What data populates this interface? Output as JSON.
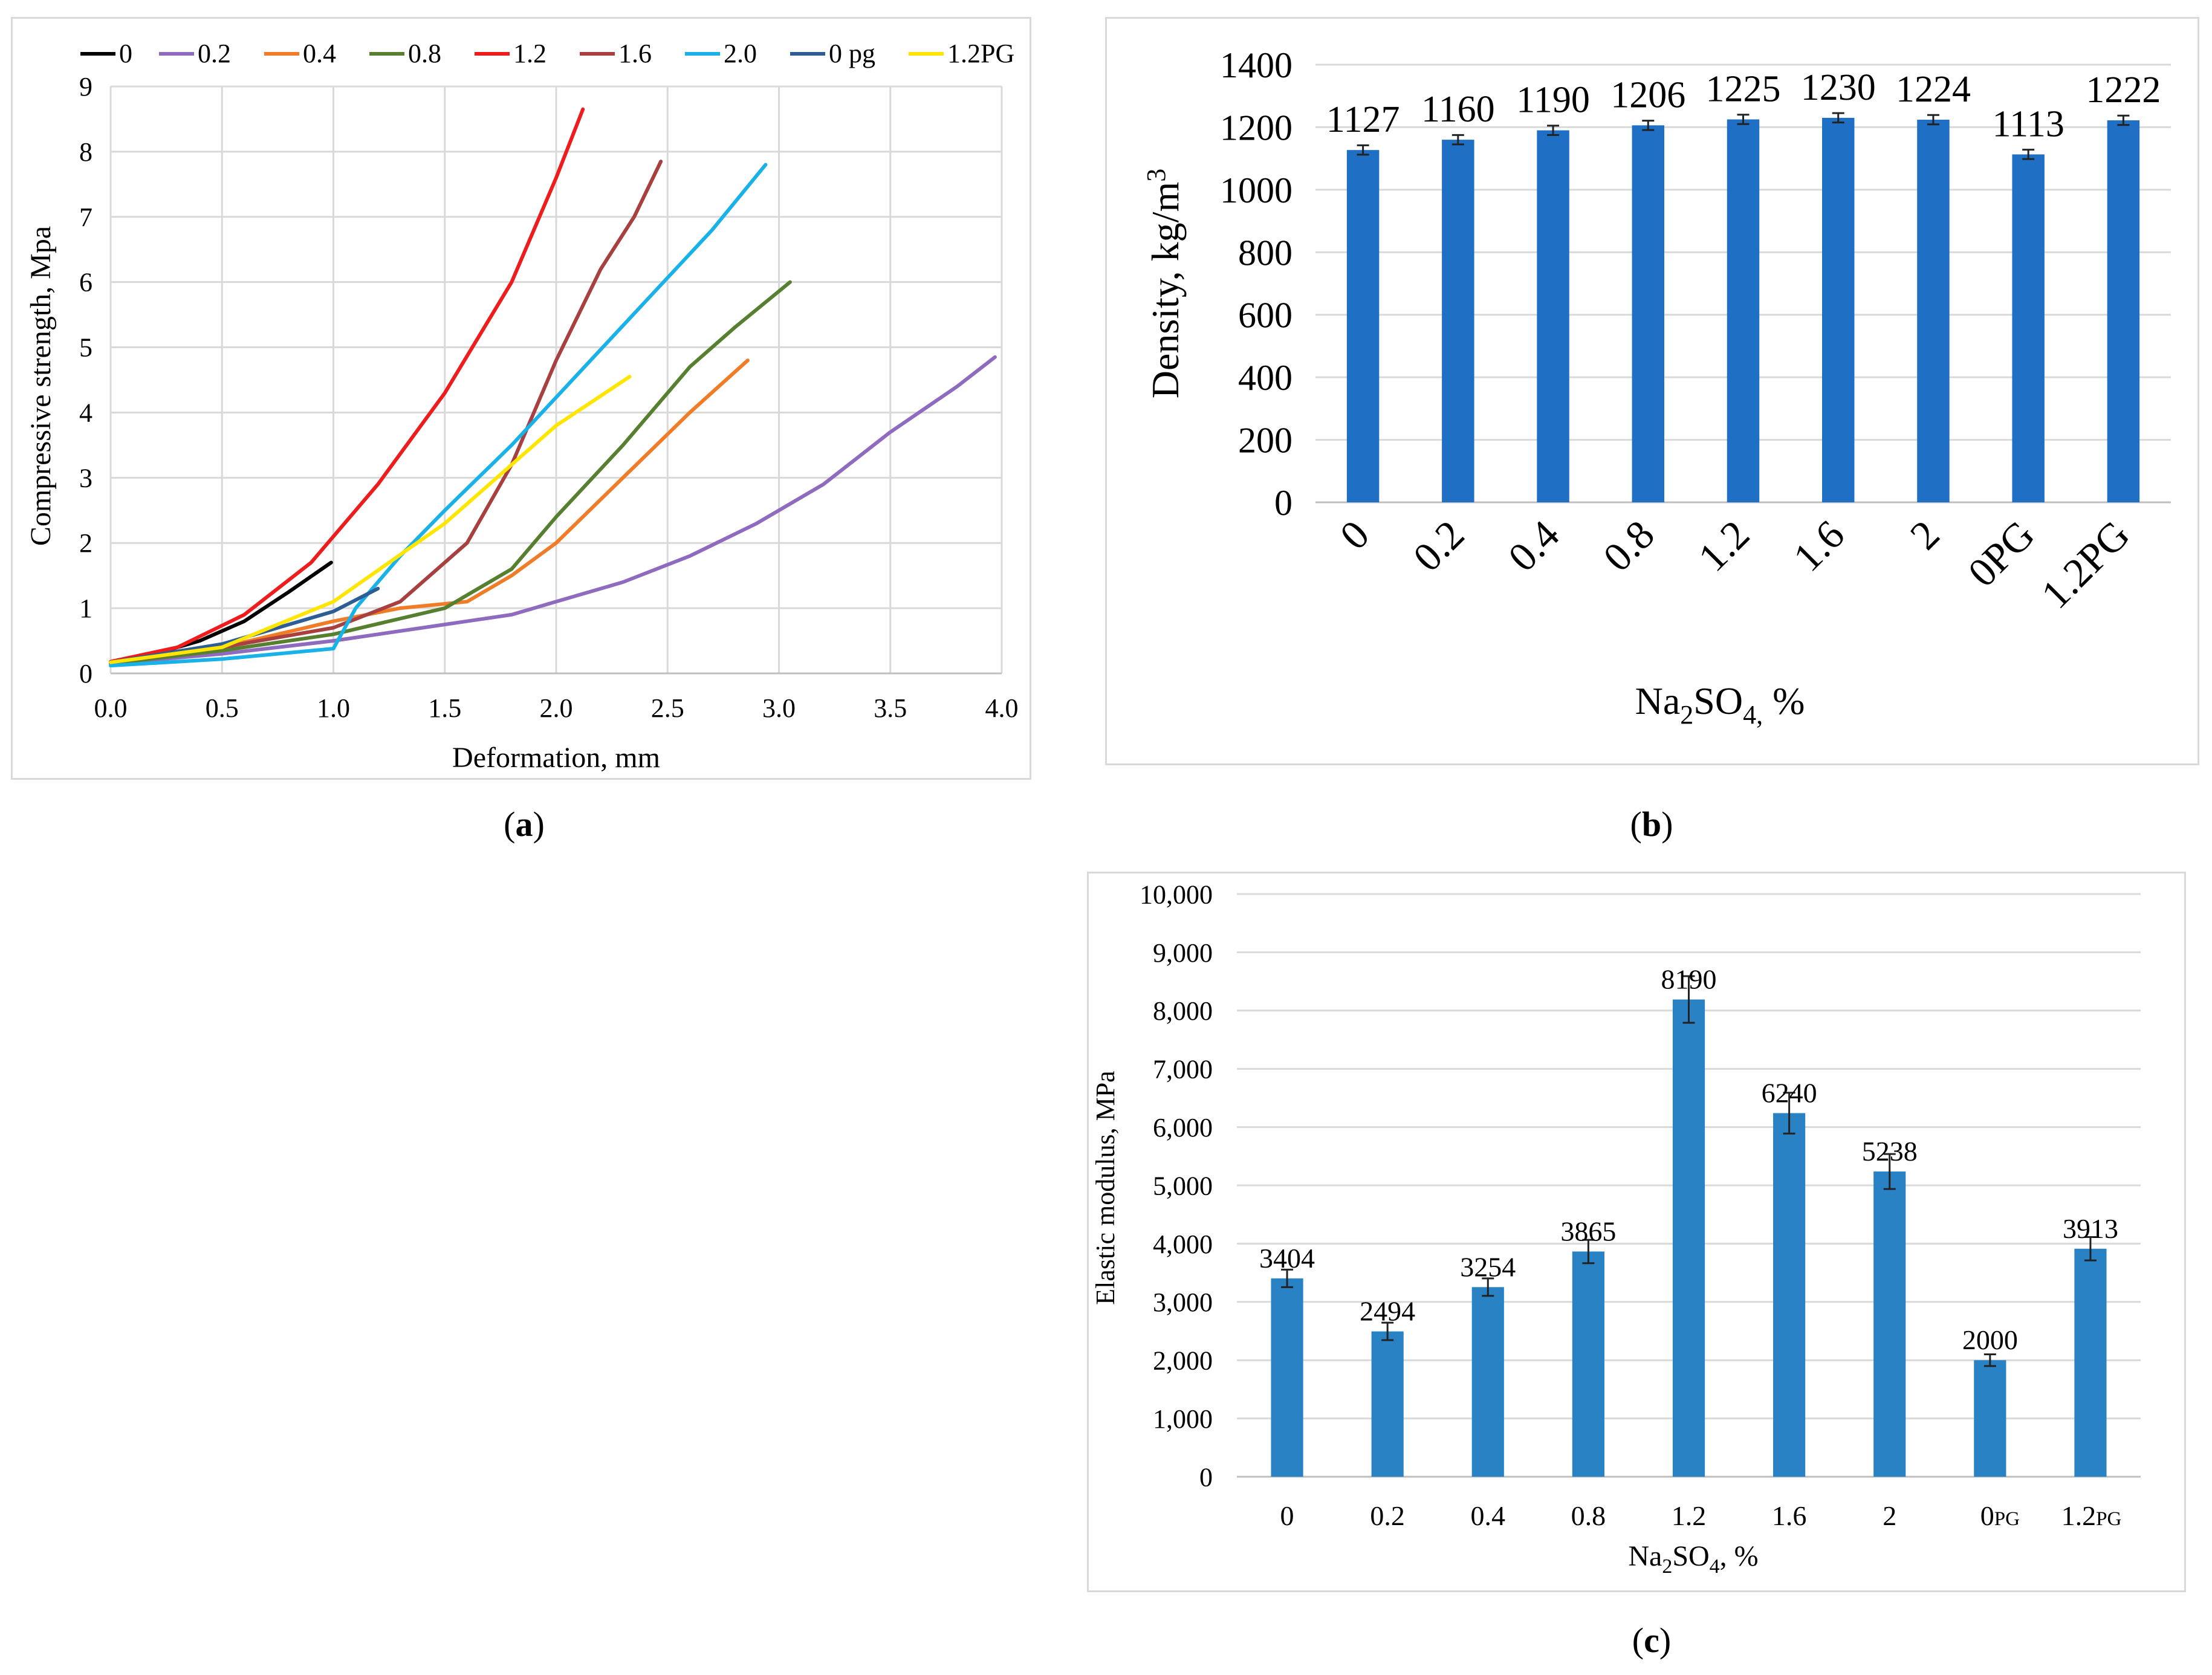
{
  "captions": {
    "a_pre": "(",
    "a": "a",
    "a_post": ")",
    "b_pre": "(",
    "b": "b",
    "b_post": ")",
    "c_pre": "(",
    "c": "c",
    "c_post": ")"
  },
  "chart_data": [
    {
      "id": "a",
      "type": "line",
      "xlabel": "Deformation, mm",
      "ylabel": "Compressive strength, Mpa",
      "xlim": [
        0,
        4
      ],
      "ylim": [
        0,
        9
      ],
      "xticks": [
        "0.0",
        "0.5",
        "1.0",
        "1.5",
        "2.0",
        "2.5",
        "3.0",
        "3.5",
        "4.0"
      ],
      "yticks": [
        "0",
        "1",
        "2",
        "3",
        "4",
        "5",
        "6",
        "7",
        "8",
        "9"
      ],
      "grid": true,
      "legend_position": "top",
      "series": [
        {
          "name": "0",
          "color": "#000000",
          "x": [
            0,
            0.2,
            0.4,
            0.6,
            0.8,
            0.99
          ],
          "y": [
            0.17,
            0.3,
            0.5,
            0.8,
            1.25,
            1.7
          ]
        },
        {
          "name": "0.2",
          "color": "#8e6bbf",
          "x": [
            0,
            0.5,
            1.0,
            1.5,
            1.8,
            2.0,
            2.3,
            2.6,
            2.9,
            3.2,
            3.5,
            3.8,
            3.97
          ],
          "y": [
            0.15,
            0.3,
            0.5,
            0.75,
            0.9,
            1.1,
            1.4,
            1.8,
            2.3,
            2.9,
            3.7,
            4.4,
            4.85
          ]
        },
        {
          "name": "0.4",
          "color": "#f07c28",
          "x": [
            0,
            0.5,
            1.0,
            1.3,
            1.6,
            1.8,
            2.0,
            2.3,
            2.6,
            2.86
          ],
          "y": [
            0.17,
            0.4,
            0.8,
            1.0,
            1.1,
            1.5,
            2.0,
            3.0,
            4.0,
            4.8
          ]
        },
        {
          "name": "0.8",
          "color": "#56802f",
          "x": [
            0,
            0.5,
            1.0,
            1.5,
            1.8,
            2.0,
            2.3,
            2.6,
            2.8,
            3.05
          ],
          "y": [
            0.15,
            0.35,
            0.6,
            1.0,
            1.6,
            2.4,
            3.5,
            4.7,
            5.3,
            6.0
          ]
        },
        {
          "name": "1.2",
          "color": "#ee1c1c",
          "x": [
            0,
            0.3,
            0.6,
            0.9,
            1.2,
            1.5,
            1.8,
            2.0,
            2.12
          ],
          "y": [
            0.18,
            0.4,
            0.9,
            1.7,
            2.9,
            4.3,
            6.0,
            7.6,
            8.65
          ]
        },
        {
          "name": "1.6",
          "color": "#a84040",
          "x": [
            0,
            0.5,
            1.0,
            1.3,
            1.6,
            1.8,
            2.0,
            2.2,
            2.35,
            2.47
          ],
          "y": [
            0.17,
            0.4,
            0.7,
            1.1,
            2.0,
            3.2,
            4.8,
            6.2,
            7.0,
            7.85
          ]
        },
        {
          "name": "2.0",
          "color": "#19b2e8",
          "x": [
            0,
            0.5,
            1.0,
            1.1,
            1.3,
            1.5,
            1.8,
            2.1,
            2.4,
            2.7,
            2.94
          ],
          "y": [
            0.12,
            0.22,
            0.38,
            1.0,
            1.8,
            2.5,
            3.5,
            4.6,
            5.7,
            6.8,
            7.8
          ]
        },
        {
          "name": "0 pg",
          "color": "#2e5d96",
          "x": [
            0,
            0.5,
            1.0,
            1.2
          ],
          "y": [
            0.17,
            0.45,
            0.95,
            1.3
          ]
        },
        {
          "name": "1.2PG",
          "color": "#ffe600",
          "x": [
            0,
            0.5,
            1.0,
            1.5,
            2.0,
            2.33
          ],
          "y": [
            0.17,
            0.4,
            1.1,
            2.3,
            3.8,
            4.55
          ]
        }
      ]
    },
    {
      "id": "b",
      "type": "bar",
      "xlabel_main": "Na",
      "xlabel_sub1": "2",
      "xlabel_mid": "SO",
      "xlabel_sub2": "4,",
      "xlabel_tail": "  %",
      "ylabel_main": "Density,  kg/m",
      "ylabel_sup": "3",
      "categories": [
        "0",
        "0.2",
        "0.4",
        "0.8",
        "1.2",
        "1.6",
        "2",
        "0PG",
        "1.2PG"
      ],
      "values": [
        1127,
        1160,
        1190,
        1206,
        1225,
        1230,
        1224,
        1113,
        1222
      ],
      "labels": [
        "1127",
        "1160",
        "1190",
        "1206",
        "1225",
        "1230",
        "1224",
        "1113",
        "1222"
      ],
      "errors": [
        15,
        15,
        15,
        15,
        15,
        15,
        15,
        15,
        15
      ],
      "ylim": [
        0,
        1400
      ],
      "yticks": [
        "0",
        "200",
        "400",
        "600",
        "800",
        "1000",
        "1200",
        "1400"
      ],
      "grid": true,
      "bar_color": "#1f6fc4"
    },
    {
      "id": "c",
      "type": "bar",
      "xlabel_main": "Na",
      "xlabel_sub1": "2",
      "xlabel_mid": "SO",
      "xlabel_sub2": "4",
      "xlabel_tail": ", %",
      "ylabel": "Elastic modulus, MPa",
      "categories": [
        "0",
        "0.2",
        "0.4",
        "0.8",
        "1.2",
        "1.6",
        "2",
        "0",
        "1.2"
      ],
      "category_suffix": [
        "",
        "",
        "",
        "",
        "",
        "",
        "",
        "PG",
        "PG"
      ],
      "values": [
        3404,
        2494,
        3254,
        3865,
        8190,
        6240,
        5238,
        2000,
        3913
      ],
      "labels": [
        "3404",
        "2494",
        "3254",
        "3865",
        "8190",
        "6240",
        "5238",
        "2000",
        "3913"
      ],
      "errors": [
        150,
        150,
        150,
        200,
        400,
        350,
        300,
        100,
        200
      ],
      "ylim": [
        0,
        10000
      ],
      "yticks": [
        "0",
        "1,000",
        "2,000",
        "3,000",
        "4,000",
        "5,000",
        "6,000",
        "7,000",
        "8,000",
        "9,000",
        "10,000"
      ],
      "grid": true,
      "bar_color": "#2882c4"
    }
  ]
}
